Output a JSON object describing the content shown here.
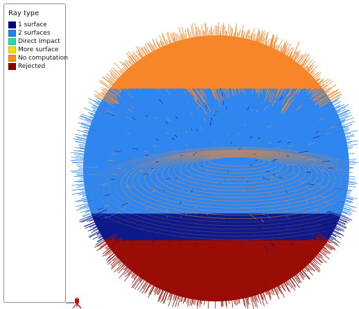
{
  "legend": {
    "title": "Ray type",
    "items": [
      {
        "label": "1 surface",
        "color": "#000080"
      },
      {
        "label": "2 surfaces",
        "color": "#1e82f0"
      },
      {
        "label": "Direct Impact",
        "color": "#22e0a0"
      },
      {
        "label": "More surface",
        "color": "#f0e000"
      },
      {
        "label": "No computation",
        "color": "#ff8c1a"
      },
      {
        "label": "Rejected",
        "color": "#8b0000"
      }
    ]
  },
  "scene": {
    "object": "ray-sphere",
    "zones": [
      {
        "type": "No computation",
        "color": "#f7862a"
      },
      {
        "type": "2 surfaces",
        "color": "#2f86ee"
      },
      {
        "type": "1 surface",
        "color": "#0e1a8a"
      },
      {
        "type": "Rejected",
        "color": "#9a0c06"
      }
    ]
  },
  "axis_gizmo": {
    "icon": "axis-triad-icon"
  }
}
